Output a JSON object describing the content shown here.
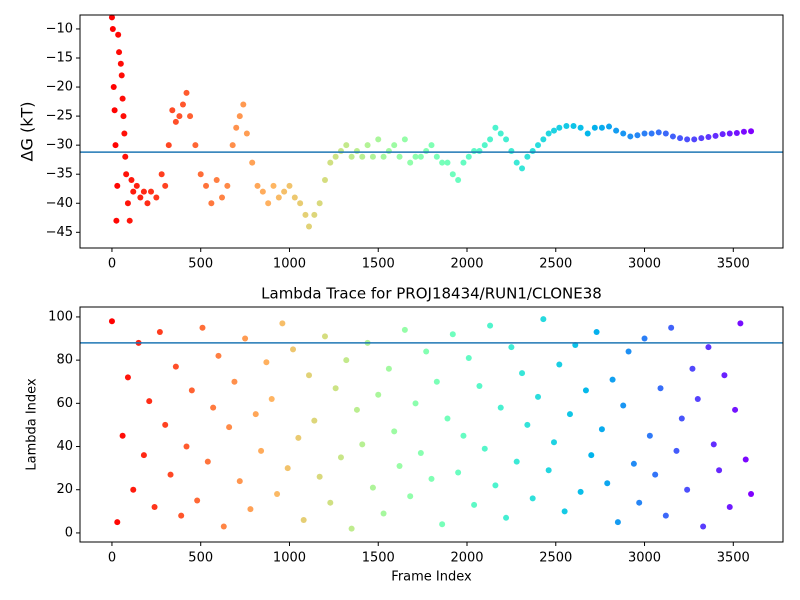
{
  "chart_data": [
    {
      "type": "scatter",
      "ylabel": "ΔG (kT)",
      "cmap": "rainbow_r",
      "hline": -31.2,
      "hline_color": "#1f77b4",
      "xlim": [
        -180,
        3780
      ],
      "ylim": [
        -47.7,
        -7.6
      ],
      "xticks": [
        0,
        500,
        1000,
        1500,
        2000,
        2500,
        3000,
        3500
      ],
      "yticks": [
        {
          "value": -45,
          "label": "−45"
        },
        {
          "value": -40,
          "label": "−40"
        },
        {
          "value": -35,
          "label": "−35"
        },
        {
          "value": -30,
          "label": "−30"
        },
        {
          "value": -25,
          "label": "−25"
        },
        {
          "value": -20,
          "label": "−20"
        },
        {
          "value": -15,
          "label": "−15"
        },
        {
          "value": -10,
          "label": "−10"
        }
      ],
      "x": [
        0,
        5,
        10,
        15,
        20,
        25,
        30,
        35,
        40,
        50,
        55,
        60,
        65,
        70,
        75,
        80,
        90,
        100,
        110,
        120,
        140,
        160,
        180,
        200,
        220,
        250,
        280,
        300,
        320,
        340,
        360,
        380,
        400,
        420,
        440,
        470,
        500,
        530,
        560,
        590,
        620,
        650,
        680,
        700,
        720,
        740,
        760,
        790,
        820,
        850,
        880,
        910,
        940,
        970,
        1000,
        1030,
        1060,
        1090,
        1110,
        1140,
        1170,
        1200,
        1230,
        1260,
        1290,
        1320,
        1350,
        1380,
        1410,
        1440,
        1470,
        1500,
        1530,
        1560,
        1590,
        1620,
        1650,
        1680,
        1710,
        1740,
        1770,
        1800,
        1830,
        1860,
        1890,
        1920,
        1950,
        1980,
        2010,
        2040,
        2070,
        2100,
        2130,
        2160,
        2190,
        2220,
        2250,
        2280,
        2310,
        2340,
        2370,
        2400,
        2430,
        2460,
        2490,
        2520,
        2560,
        2600,
        2640,
        2680,
        2720,
        2760,
        2800,
        2840,
        2880,
        2920,
        2960,
        3000,
        3040,
        3080,
        3120,
        3160,
        3200,
        3240,
        3280,
        3320,
        3360,
        3400,
        3440,
        3480,
        3520,
        3560,
        3600
      ],
      "values": [
        -8,
        -10,
        -20,
        -24,
        -30,
        -43,
        -37,
        -11,
        -14,
        -16,
        -18,
        -22,
        -25,
        -28,
        -32,
        -35,
        -40,
        -43,
        -36,
        -38,
        -37,
        -39,
        -38,
        -40,
        -38,
        -39,
        -35,
        -37,
        -30,
        -24,
        -26,
        -25,
        -23,
        -21,
        -25,
        -30,
        -35,
        -37,
        -40,
        -36,
        -39,
        -37,
        -30,
        -27,
        -25,
        -23,
        -28,
        -33,
        -37,
        -38,
        -40,
        -37,
        -39,
        -38,
        -37,
        -39,
        -40,
        -42,
        -44,
        -42,
        -40,
        -36,
        -33,
        -32,
        -31,
        -30,
        -32,
        -31,
        -32,
        -30,
        -32,
        -29,
        -32,
        -31,
        -30,
        -32,
        -29,
        -33,
        -32,
        -32,
        -31,
        -30,
        -32,
        -33,
        -33,
        -35,
        -36,
        -33,
        -32,
        -31,
        -31,
        -30,
        -29,
        -27,
        -28,
        -29,
        -31,
        -33,
        -34,
        -32,
        -31,
        -30,
        -29,
        -28,
        -27.5,
        -27,
        -26.7,
        -26.7,
        -27,
        -28,
        -27,
        -27,
        -26.8,
        -27.5,
        -28,
        -28.5,
        -28.3,
        -28,
        -28,
        -27.8,
        -28,
        -28.5,
        -28.8,
        -29,
        -29,
        -28.8,
        -28.6,
        -28.4,
        -28.1,
        -28,
        -27.9,
        -27.7,
        -27.6
      ]
    },
    {
      "type": "scatter",
      "title": "Lambda Trace for PROJ18434/RUN1/CLONE38",
      "xlabel": "Frame Index",
      "ylabel": "Lambda Index",
      "cmap": "rainbow_r",
      "hline": 88,
      "hline_color": "#1f77b4",
      "xlim": [
        -180,
        3780
      ],
      "ylim": [
        -4.2,
        104.6
      ],
      "xticks": [
        0,
        500,
        1000,
        1500,
        2000,
        2500,
        3000,
        3500
      ],
      "yticks": [
        0,
        20,
        40,
        60,
        80,
        100
      ],
      "x": [
        0,
        30,
        60,
        90,
        120,
        150,
        180,
        210,
        240,
        270,
        300,
        330,
        360,
        390,
        420,
        450,
        480,
        510,
        540,
        570,
        600,
        630,
        660,
        690,
        720,
        750,
        780,
        810,
        840,
        870,
        900,
        930,
        960,
        990,
        1020,
        1050,
        1080,
        1110,
        1140,
        1170,
        1200,
        1230,
        1260,
        1290,
        1320,
        1350,
        1380,
        1410,
        1440,
        1470,
        1500,
        1530,
        1560,
        1590,
        1620,
        1650,
        1680,
        1710,
        1740,
        1770,
        1800,
        1830,
        1860,
        1890,
        1920,
        1950,
        1980,
        2010,
        2040,
        2070,
        2100,
        2130,
        2160,
        2190,
        2220,
        2250,
        2280,
        2310,
        2340,
        2370,
        2400,
        2430,
        2460,
        2490,
        2520,
        2550,
        2580,
        2610,
        2640,
        2670,
        2700,
        2730,
        2760,
        2790,
        2820,
        2850,
        2880,
        2910,
        2940,
        2970,
        3000,
        3030,
        3060,
        3090,
        3120,
        3150,
        3180,
        3210,
        3240,
        3270,
        3300,
        3330,
        3360,
        3390,
        3420,
        3450,
        3480,
        3510,
        3540,
        3570,
        3600
      ],
      "values": [
        98,
        5,
        45,
        72,
        20,
        88,
        36,
        61,
        12,
        93,
        50,
        27,
        77,
        8,
        40,
        66,
        15,
        95,
        33,
        58,
        82,
        3,
        49,
        70,
        24,
        90,
        11,
        55,
        38,
        79,
        62,
        18,
        97,
        30,
        85,
        44,
        6,
        73,
        52,
        26,
        91,
        14,
        67,
        35,
        80,
        2,
        57,
        41,
        88,
        21,
        64,
        9,
        76,
        47,
        31,
        94,
        17,
        60,
        37,
        84,
        25,
        70,
        4,
        53,
        92,
        28,
        45,
        81,
        13,
        68,
        39,
        96,
        22,
        58,
        7,
        86,
        33,
        74,
        50,
        16,
        63,
        99,
        29,
        42,
        78,
        10,
        55,
        87,
        19,
        66,
        36,
        93,
        48,
        23,
        71,
        5,
        59,
        84,
        32,
        14,
        90,
        45,
        27,
        67,
        8,
        95,
        38,
        53,
        20,
        76,
        62,
        3,
        86,
        41,
        29,
        73,
        12,
        57,
        97,
        34,
        18
      ]
    }
  ]
}
